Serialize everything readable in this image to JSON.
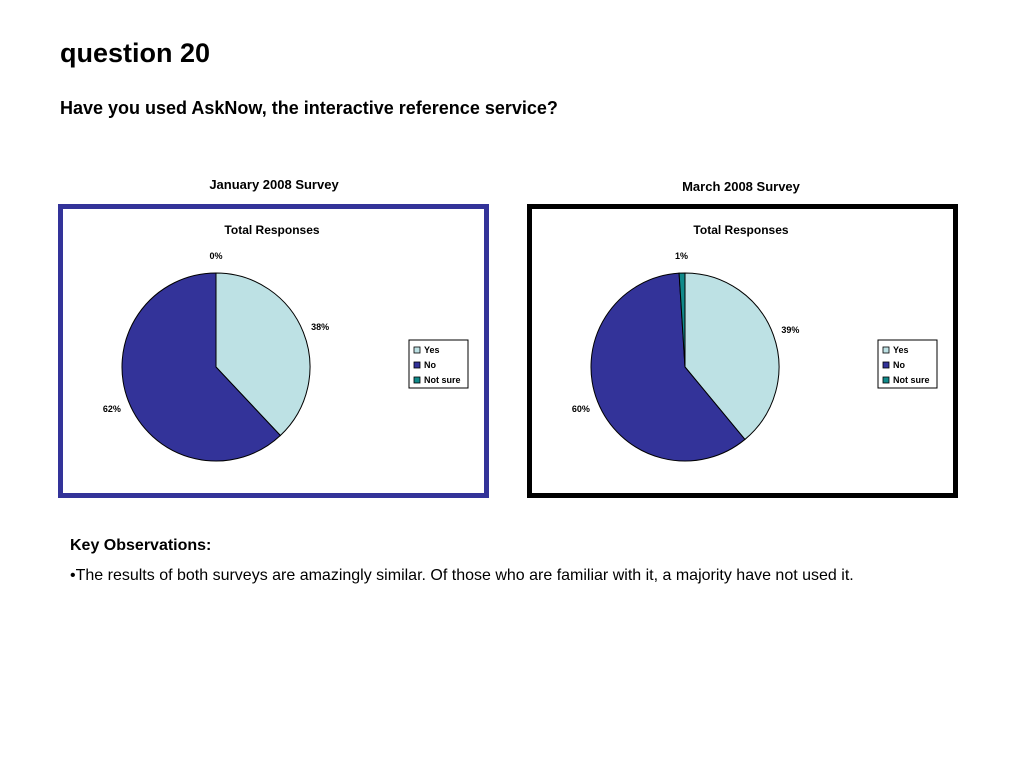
{
  "page": {
    "title": "question 20",
    "question": "Have you used AskNow, the interactive reference service?"
  },
  "observations": {
    "heading": "Key Observations:",
    "text": "•The results of both surveys are amazingly similar. Of those who are familiar with it, a majority have not used it."
  },
  "colors": {
    "yes": "#bde1e4",
    "no": "#333399",
    "not_sure": "#108a8a",
    "frame_january": "#333399",
    "frame_march": "#000000"
  },
  "chart_data": [
    {
      "type": "pie",
      "survey_title": "January 2008 Survey",
      "title": "Total Responses",
      "categories": [
        "Yes",
        "No",
        "Not sure"
      ],
      "values": [
        38,
        62,
        0
      ],
      "value_labels": [
        "38%",
        "62%",
        "0%"
      ],
      "legend": "right"
    },
    {
      "type": "pie",
      "survey_title": "March 2008 Survey",
      "title": "Total Responses",
      "categories": [
        "Yes",
        "No",
        "Not sure"
      ],
      "values": [
        39,
        60,
        1
      ],
      "value_labels": [
        "39%",
        "60%",
        "1%"
      ],
      "legend": "right"
    }
  ]
}
